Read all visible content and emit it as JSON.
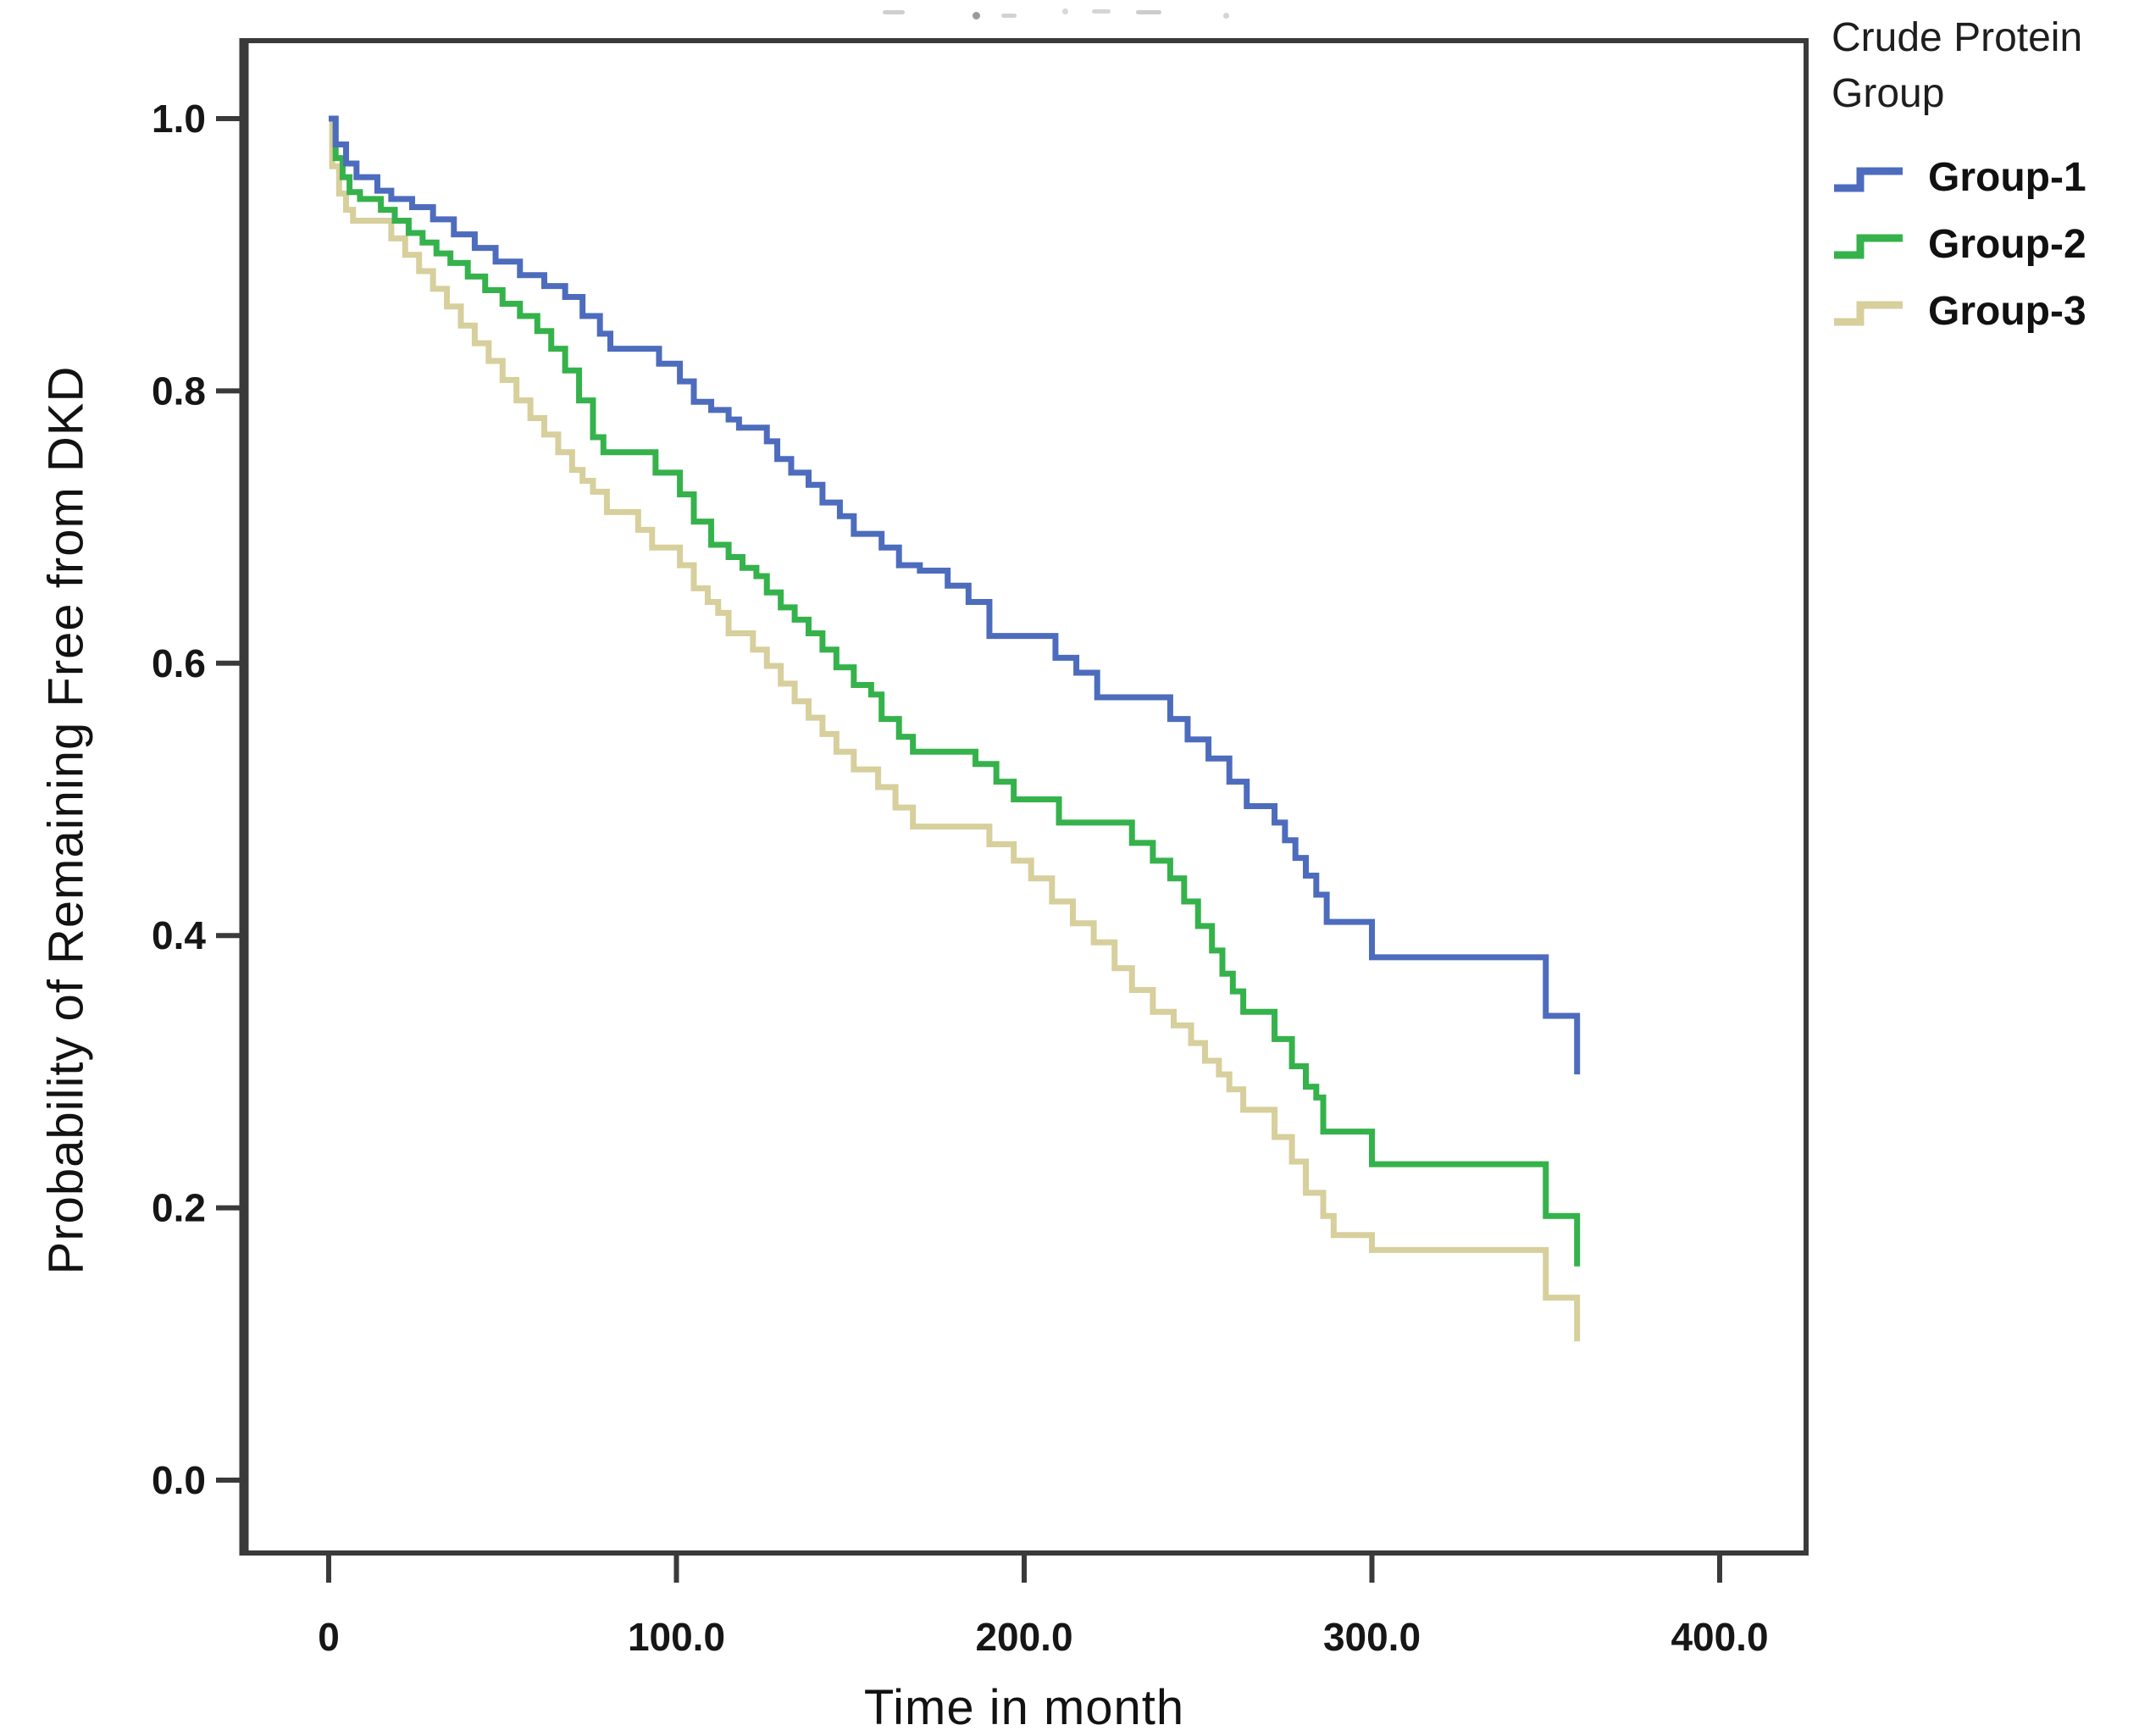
{
  "figure": {
    "background": "#ffffff",
    "frame_color": "#3a3a3a",
    "text_color": "#161616",
    "legend": {
      "title": "Crude Protein Group",
      "items": [
        {
          "label": "Group-1",
          "color": "#4d6cbd"
        },
        {
          "label": "Group-2",
          "color": "#35b24b"
        },
        {
          "label": "Group-3",
          "color": "#d7cf9c"
        }
      ]
    },
    "axes": {
      "x": {
        "title": "Time in month",
        "tick_labels": [
          "0",
          "100.0",
          "200.0",
          "300.0",
          "400.0"
        ],
        "tick_values": [
          0,
          100,
          200,
          300,
          400
        ]
      },
      "y": {
        "title": "Probability of Remaining Free from DKD",
        "tick_labels": [
          "1.0",
          "0.8",
          "0.6",
          "0.4",
          "0.2",
          "0.0"
        ],
        "tick_values": [
          1.0,
          0.8,
          0.6,
          0.4,
          0.2,
          0.0
        ]
      }
    }
  },
  "chart_data": {
    "type": "line",
    "subtype": "kaplan_meier_step",
    "title": "",
    "xlabel": "Time in month",
    "ylabel": "Probability of Remaining Free from DKD",
    "xlim": [
      0,
      400
    ],
    "ylim": [
      0.0,
      1.0
    ],
    "x_ticks": [
      0,
      100,
      200,
      300,
      400
    ],
    "y_ticks": [
      1.0,
      0.8,
      0.6,
      0.4,
      0.2,
      0.0
    ],
    "grid": false,
    "legend_position": "top-right-outside",
    "legend_title": "Crude Protein Group",
    "series": [
      {
        "name": "Group-1",
        "color": "#4d6cbd",
        "points": [
          [
            0,
            1.0
          ],
          [
            2,
            0.981
          ],
          [
            5,
            0.967
          ],
          [
            8,
            0.957
          ],
          [
            14,
            0.947
          ],
          [
            18,
            0.941
          ],
          [
            24,
            0.935
          ],
          [
            30,
            0.926
          ],
          [
            36,
            0.915
          ],
          [
            42,
            0.905
          ],
          [
            48,
            0.895
          ],
          [
            55,
            0.885
          ],
          [
            62,
            0.877
          ],
          [
            68,
            0.869
          ],
          [
            73,
            0.855
          ],
          [
            78,
            0.842
          ],
          [
            81,
            0.831
          ],
          [
            95,
            0.82
          ],
          [
            101,
            0.807
          ],
          [
            105,
            0.792
          ],
          [
            110,
            0.786
          ],
          [
            115,
            0.779
          ],
          [
            118,
            0.773
          ],
          [
            126,
            0.763
          ],
          [
            129,
            0.75
          ],
          [
            133,
            0.74
          ],
          [
            138,
            0.731
          ],
          [
            142,
            0.718
          ],
          [
            147,
            0.708
          ],
          [
            151,
            0.695
          ],
          [
            159,
            0.685
          ],
          [
            164,
            0.672
          ],
          [
            170,
            0.668
          ],
          [
            178,
            0.657
          ],
          [
            184,
            0.645
          ],
          [
            190,
            0.62
          ],
          [
            209,
            0.604
          ],
          [
            215,
            0.593
          ],
          [
            221,
            0.575
          ],
          [
            242,
            0.559
          ],
          [
            247,
            0.544
          ],
          [
            253,
            0.53
          ],
          [
            259,
            0.513
          ],
          [
            264,
            0.495
          ],
          [
            272,
            0.483
          ],
          [
            275,
            0.47
          ],
          [
            278,
            0.457
          ],
          [
            281,
            0.444
          ],
          [
            284,
            0.43
          ],
          [
            287,
            0.41
          ],
          [
            300,
            0.384
          ],
          [
            350,
            0.341
          ],
          [
            359,
            0.298
          ]
        ]
      },
      {
        "name": "Group-2",
        "color": "#35b24b",
        "points": [
          [
            0,
            1.0
          ],
          [
            2,
            0.971
          ],
          [
            4,
            0.957
          ],
          [
            6,
            0.946
          ],
          [
            9,
            0.941
          ],
          [
            15,
            0.933
          ],
          [
            19,
            0.925
          ],
          [
            23,
            0.916
          ],
          [
            27,
            0.909
          ],
          [
            31,
            0.901
          ],
          [
            35,
            0.894
          ],
          [
            40,
            0.884
          ],
          [
            45,
            0.874
          ],
          [
            50,
            0.864
          ],
          [
            55,
            0.855
          ],
          [
            60,
            0.844
          ],
          [
            64,
            0.831
          ],
          [
            68,
            0.815
          ],
          [
            72,
            0.793
          ],
          [
            76,
            0.766
          ],
          [
            79,
            0.755
          ],
          [
            94,
            0.74
          ],
          [
            101,
            0.724
          ],
          [
            105,
            0.704
          ],
          [
            110,
            0.687
          ],
          [
            115,
            0.678
          ],
          [
            119,
            0.67
          ],
          [
            123,
            0.664
          ],
          [
            126,
            0.652
          ],
          [
            130,
            0.641
          ],
          [
            134,
            0.632
          ],
          [
            138,
            0.622
          ],
          [
            142,
            0.61
          ],
          [
            146,
            0.597
          ],
          [
            151,
            0.584
          ],
          [
            156,
            0.577
          ],
          [
            159,
            0.559
          ],
          [
            164,
            0.546
          ],
          [
            168,
            0.535
          ],
          [
            186,
            0.526
          ],
          [
            192,
            0.513
          ],
          [
            197,
            0.5
          ],
          [
            210,
            0.483
          ],
          [
            231,
            0.468
          ],
          [
            237,
            0.455
          ],
          [
            242,
            0.442
          ],
          [
            246,
            0.425
          ],
          [
            250,
            0.407
          ],
          [
            254,
            0.389
          ],
          [
            257,
            0.372
          ],
          [
            260,
            0.359
          ],
          [
            263,
            0.344
          ],
          [
            272,
            0.324
          ],
          [
            277,
            0.304
          ],
          [
            281,
            0.289
          ],
          [
            284,
            0.281
          ],
          [
            286,
            0.256
          ],
          [
            300,
            0.232
          ],
          [
            350,
            0.194
          ],
          [
            359,
            0.157
          ]
        ]
      },
      {
        "name": "Group-3",
        "color": "#d7cf9c",
        "points": [
          [
            0,
            1.0
          ],
          [
            1,
            0.965
          ],
          [
            3,
            0.945
          ],
          [
            5,
            0.933
          ],
          [
            7,
            0.925
          ],
          [
            18,
            0.912
          ],
          [
            22,
            0.9
          ],
          [
            26,
            0.888
          ],
          [
            30,
            0.875
          ],
          [
            34,
            0.862
          ],
          [
            38,
            0.848
          ],
          [
            42,
            0.835
          ],
          [
            46,
            0.822
          ],
          [
            50,
            0.808
          ],
          [
            54,
            0.793
          ],
          [
            58,
            0.78
          ],
          [
            62,
            0.768
          ],
          [
            66,
            0.755
          ],
          [
            70,
            0.742
          ],
          [
            73,
            0.734
          ],
          [
            76,
            0.726
          ],
          [
            80,
            0.711
          ],
          [
            89,
            0.698
          ],
          [
            93,
            0.685
          ],
          [
            101,
            0.672
          ],
          [
            105,
            0.655
          ],
          [
            109,
            0.645
          ],
          [
            112,
            0.637
          ],
          [
            115,
            0.622
          ],
          [
            122,
            0.61
          ],
          [
            126,
            0.598
          ],
          [
            130,
            0.585
          ],
          [
            134,
            0.572
          ],
          [
            138,
            0.56
          ],
          [
            142,
            0.548
          ],
          [
            146,
            0.535
          ],
          [
            151,
            0.522
          ],
          [
            158,
            0.509
          ],
          [
            163,
            0.494
          ],
          [
            168,
            0.48
          ],
          [
            190,
            0.467
          ],
          [
            197,
            0.455
          ],
          [
            202,
            0.442
          ],
          [
            208,
            0.425
          ],
          [
            214,
            0.409
          ],
          [
            220,
            0.395
          ],
          [
            226,
            0.376
          ],
          [
            231,
            0.36
          ],
          [
            237,
            0.344
          ],
          [
            243,
            0.334
          ],
          [
            248,
            0.321
          ],
          [
            252,
            0.308
          ],
          [
            256,
            0.298
          ],
          [
            259,
            0.287
          ],
          [
            263,
            0.272
          ],
          [
            272,
            0.252
          ],
          [
            277,
            0.234
          ],
          [
            281,
            0.211
          ],
          [
            286,
            0.194
          ],
          [
            289,
            0.18
          ],
          [
            300,
            0.169
          ],
          [
            350,
            0.134
          ],
          [
            359,
            0.102
          ]
        ]
      }
    ]
  }
}
